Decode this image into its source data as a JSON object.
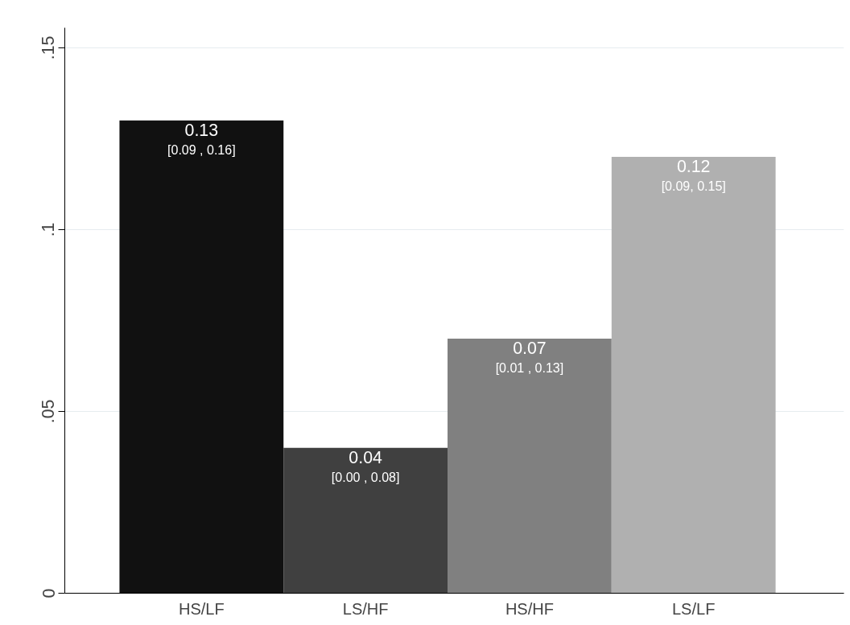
{
  "chart_data": {
    "type": "bar",
    "categories": [
      "HS/LF",
      "LS/HF",
      "HS/HF",
      "LS/LF"
    ],
    "values": [
      0.13,
      0.04,
      0.07,
      0.12
    ],
    "colors": [
      "#111111",
      "#404040",
      "#808080",
      "#b0b0b0"
    ],
    "value_labels": [
      "0.13",
      "0.04",
      "0.07",
      "0.12"
    ],
    "annotations": [
      {
        "text": "[0.09 , 0.16]",
        "x": "HS/LF",
        "y": 0.13
      },
      {
        "text": "[0.00 , 0.08]",
        "x": "LS/HF",
        "y": 0.04
      },
      {
        "text": "[0.01 , 0.13]",
        "x": "HS/HF",
        "y": 0.07
      },
      {
        "text": "[0.09, 0.15]",
        "x": "LS/LF",
        "y": 0.12
      }
    ],
    "ylim": [
      0,
      0.1555
    ],
    "yticks": [
      0,
      {
        "value": 0.05,
        "label": ".05"
      },
      {
        "value": 0.1,
        "label": ".1"
      },
      {
        "value": 0.15,
        "label": ".15"
      }
    ],
    "grid": "y"
  }
}
